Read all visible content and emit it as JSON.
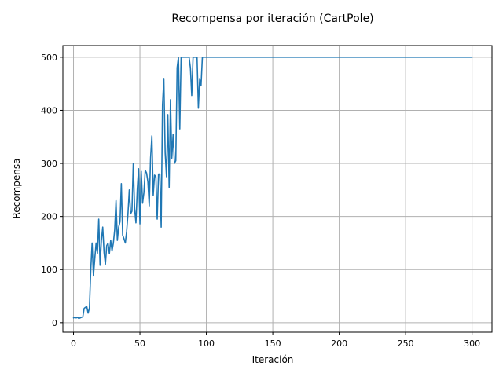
{
  "chart_data": {
    "type": "line",
    "title": "Recompensa por iteración (CartPole)",
    "xlabel": "Iteración",
    "ylabel": "Recompensa",
    "xlim": [
      -8,
      315
    ],
    "ylim": [
      -18,
      522
    ],
    "xticks": [
      0,
      50,
      100,
      150,
      200,
      250,
      300
    ],
    "yticks": [
      0,
      100,
      200,
      300,
      400,
      500
    ],
    "grid": true,
    "legend": "none",
    "colors": {
      "series": "#1f77b4",
      "grid": "#b0b0b0",
      "axes": "#000000"
    },
    "series": [
      {
        "x": [
          0,
          1,
          2,
          3,
          4,
          5,
          6,
          7,
          8,
          9,
          10,
          11,
          12,
          13,
          14,
          15,
          16,
          17,
          18,
          19,
          20,
          21,
          22,
          23,
          24,
          25,
          26,
          27,
          28,
          29,
          30,
          31,
          32,
          33,
          34,
          35,
          36,
          37,
          38,
          39,
          40,
          41,
          42,
          43,
          44,
          45,
          46,
          47,
          48,
          49,
          50,
          51,
          52,
          53,
          54,
          55,
          56,
          57,
          58,
          59,
          60,
          61,
          62,
          63,
          64,
          65,
          66,
          67,
          68,
          69,
          70,
          71,
          72,
          73,
          74,
          75,
          76,
          77,
          78,
          79,
          80,
          81,
          82,
          83,
          84,
          85,
          86,
          87,
          88,
          89,
          90,
          91,
          92,
          93,
          94,
          95,
          96,
          97,
          98,
          99,
          100,
          300
        ],
        "values": [
          9,
          10,
          9,
          10,
          8,
          9,
          10,
          11,
          27,
          29,
          30,
          18,
          28,
          100,
          150,
          88,
          120,
          150,
          131,
          195,
          108,
          155,
          180,
          132,
          110,
          145,
          150,
          130,
          155,
          135,
          150,
          175,
          230,
          155,
          180,
          190,
          262,
          165,
          158,
          150,
          172,
          205,
          250,
          205,
          210,
          300,
          215,
          188,
          250,
          290,
          186,
          285,
          225,
          245,
          287,
          282,
          265,
          220,
          310,
          352,
          240,
          278,
          275,
          195,
          280,
          280,
          180,
          410,
          460,
          320,
          275,
          392,
          255,
          420,
          310,
          355,
          300,
          305,
          480,
          500,
          365,
          500,
          500,
          500,
          500,
          500,
          500,
          500,
          480,
          428,
          500,
          500,
          500,
          500,
          404,
          460,
          446,
          500,
          500,
          500,
          500,
          500
        ]
      }
    ]
  }
}
